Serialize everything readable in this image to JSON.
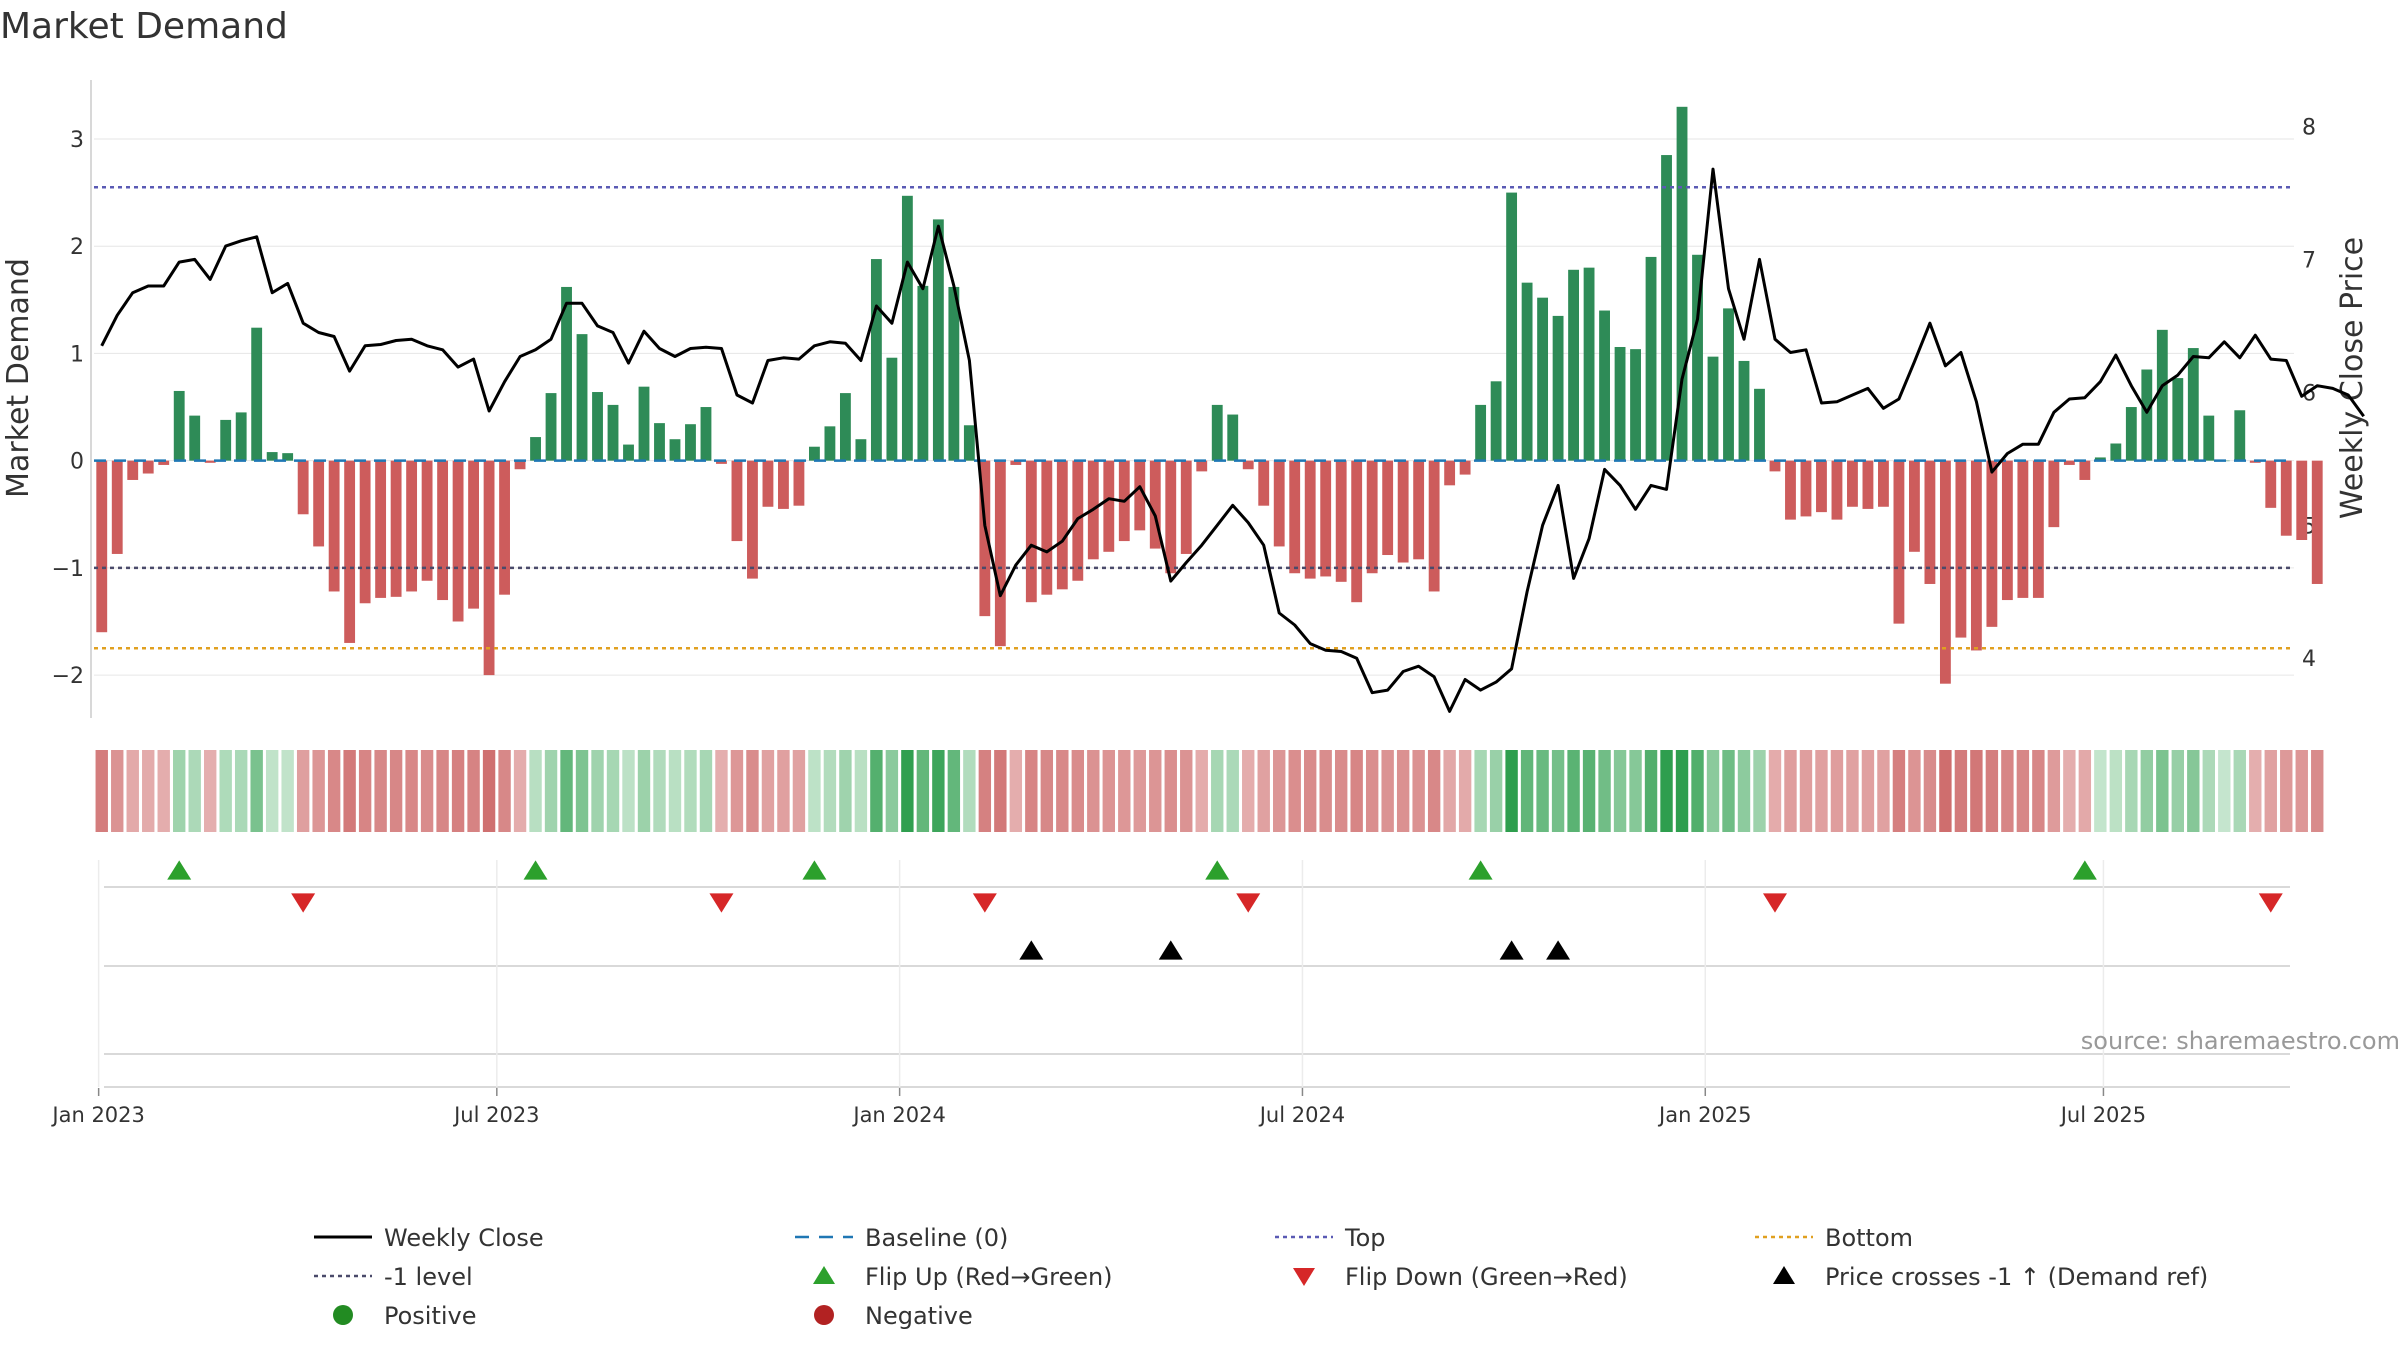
{
  "chart_data": {
    "type": "bar+line",
    "title": "Market Demand",
    "ylabel": "Market Demand",
    "y2label": "Weekly Close Price",
    "ylim": [
      -2.4,
      3.55
    ],
    "y2lim": [
      3.55,
      8.35
    ],
    "yticks": [
      3,
      2,
      1,
      0,
      -1,
      -2
    ],
    "ytick_labels": [
      "3",
      "2",
      "1",
      "0",
      "−1",
      "−2"
    ],
    "y2ticks": [
      8,
      7,
      6,
      5,
      4
    ],
    "y2tick_labels": [
      "8",
      "7",
      "6",
      "5",
      "4"
    ],
    "reference_lines": {
      "top": 2.55,
      "minus_one": -1.0,
      "bottom": -1.75,
      "baseline": 0
    },
    "x_range_weeks": [
      0,
      142
    ],
    "date_ticks": [
      {
        "week": 0.3,
        "label": "Jan 2023"
      },
      {
        "week": 26,
        "label": "Jul 2023"
      },
      {
        "week": 52,
        "label": "Jan 2024"
      },
      {
        "week": 78,
        "label": "Jul 2024"
      },
      {
        "week": 104,
        "label": "Jan 2025"
      },
      {
        "week": 129.7,
        "label": "Jul 2025"
      }
    ],
    "demand": [
      -1.6,
      -0.87,
      -0.18,
      -0.12,
      -0.04,
      0.65,
      0.42,
      -0.02,
      0.38,
      0.45,
      1.24,
      0.08,
      0.07,
      -0.5,
      -0.8,
      -1.22,
      -1.7,
      -1.33,
      -1.28,
      -1.27,
      -1.22,
      -1.12,
      -1.3,
      -1.5,
      -1.38,
      -2.0,
      -1.25,
      -0.08,
      0.22,
      0.63,
      1.62,
      1.18,
      0.64,
      0.52,
      0.15,
      0.69,
      0.35,
      0.2,
      0.34,
      0.5,
      -0.03,
      -0.75,
      -1.1,
      -0.43,
      -0.45,
      -0.42,
      0.13,
      0.32,
      0.63,
      0.2,
      1.88,
      0.96,
      2.47,
      1.63,
      2.25,
      1.62,
      0.33,
      -1.45,
      -1.73,
      -0.04,
      -1.32,
      -1.25,
      -1.2,
      -1.12,
      -0.92,
      -0.85,
      -0.75,
      -0.65,
      -0.82,
      -1.05,
      -0.87,
      -0.1,
      0.52,
      0.43,
      -0.08,
      -0.42,
      -0.8,
      -1.05,
      -1.1,
      -1.08,
      -1.13,
      -1.32,
      -1.05,
      -0.88,
      -0.95,
      -0.92,
      -1.22,
      -0.23,
      -0.13,
      0.52,
      0.74,
      2.5,
      1.66,
      1.52,
      1.35,
      1.78,
      1.8,
      1.4,
      1.06,
      1.04,
      1.9,
      2.85,
      3.3,
      1.92,
      0.97,
      1.42,
      0.93,
      0.67,
      -0.1,
      -0.55,
      -0.52,
      -0.48,
      -0.55,
      -0.43,
      -0.45,
      -0.43,
      -1.52,
      -0.85,
      -1.15,
      -2.08,
      -1.65,
      -1.77,
      -1.55,
      -1.3,
      -1.28,
      -1.28,
      -0.62,
      -0.04,
      -0.18,
      0.03,
      0.16,
      0.5,
      0.85,
      1.22,
      0.77,
      1.05,
      0.42,
      0.0,
      0.47,
      -0.02,
      -0.44,
      -0.7,
      -0.74,
      -1.15
    ],
    "weekly_close": [
      6.35,
      6.58,
      6.75,
      6.8,
      6.8,
      6.98,
      7.0,
      6.85,
      7.1,
      7.14,
      7.17,
      6.75,
      6.82,
      6.52,
      6.45,
      6.42,
      6.16,
      6.35,
      6.36,
      6.39,
      6.4,
      6.35,
      6.32,
      6.19,
      6.25,
      5.86,
      6.08,
      6.27,
      6.32,
      6.4,
      6.67,
      6.67,
      6.5,
      6.45,
      6.22,
      6.46,
      6.33,
      6.27,
      6.33,
      6.34,
      6.33,
      5.98,
      5.92,
      6.24,
      6.26,
      6.25,
      6.35,
      6.38,
      6.37,
      6.24,
      6.65,
      6.52,
      6.98,
      6.78,
      7.25,
      6.8,
      6.24,
      5.0,
      4.47,
      4.7,
      4.85,
      4.8,
      4.88,
      5.05,
      5.12,
      5.2,
      5.18,
      5.29,
      5.07,
      4.58,
      4.72,
      4.85,
      5.0,
      5.15,
      5.02,
      4.85,
      4.34,
      4.25,
      4.11,
      4.06,
      4.05,
      4.0,
      3.74,
      3.76,
      3.9,
      3.94,
      3.86,
      3.6,
      3.84,
      3.76,
      3.82,
      3.92,
      4.5,
      5.0,
      5.3,
      4.6,
      4.9,
      5.42,
      5.3,
      5.12,
      5.3,
      5.27,
      6.1,
      6.55,
      7.68,
      6.78,
      6.4,
      7.0,
      6.4,
      6.3,
      6.32,
      5.92,
      5.93,
      5.98,
      6.03,
      5.88,
      5.95,
      6.23,
      6.52,
      6.2,
      6.3,
      5.93,
      5.4,
      5.54,
      5.61,
      5.61,
      5.85,
      5.95,
      5.96,
      6.08,
      6.28,
      6.05,
      5.85,
      6.05,
      6.13,
      6.27,
      6.26,
      6.38,
      6.26,
      6.43,
      6.25,
      6.24,
      5.97,
      6.05,
      6.03,
      5.98,
      5.82
    ],
    "events": {
      "flip_up_weeks": [
        5,
        28,
        46,
        72,
        89,
        128
      ],
      "flip_down_weeks": [
        13,
        40,
        57,
        74,
        108,
        140
      ],
      "price_crosses_weeks": [
        60,
        69,
        91,
        94
      ]
    },
    "legend": [
      {
        "key": "weekly_close",
        "label": "Weekly Close"
      },
      {
        "key": "baseline",
        "label": "Baseline (0)"
      },
      {
        "key": "top",
        "label": "Top"
      },
      {
        "key": "bottom",
        "label": "Bottom"
      },
      {
        "key": "minus_one",
        "label": "-1 level"
      },
      {
        "key": "flip_up",
        "label": "Flip Up (Red→Green)"
      },
      {
        "key": "flip_down",
        "label": "Flip Down (Green→Red)"
      },
      {
        "key": "price_cross",
        "label": "Price crosses -1 ↑ (Demand ref)"
      },
      {
        "key": "positive",
        "label": "Positive"
      },
      {
        "key": "negative",
        "label": "Negative"
      }
    ],
    "source": "source: sharemaestro.com"
  },
  "colors": {
    "positive_bar": "#2e8b57",
    "negative_bar": "#cd5c5c",
    "line": "#000000",
    "baseline": "#1f77b4",
    "top": "#5a5ab4",
    "minus_one": "#4a4a6a",
    "bottom": "#e0a020",
    "flip_up": "#2ca02c",
    "flip_down": "#d62728",
    "cross": "#000000",
    "positive_dot": "#228b22",
    "negative_dot": "#b22222",
    "grid": "#e6e6e6",
    "axis": "#cccccc"
  }
}
